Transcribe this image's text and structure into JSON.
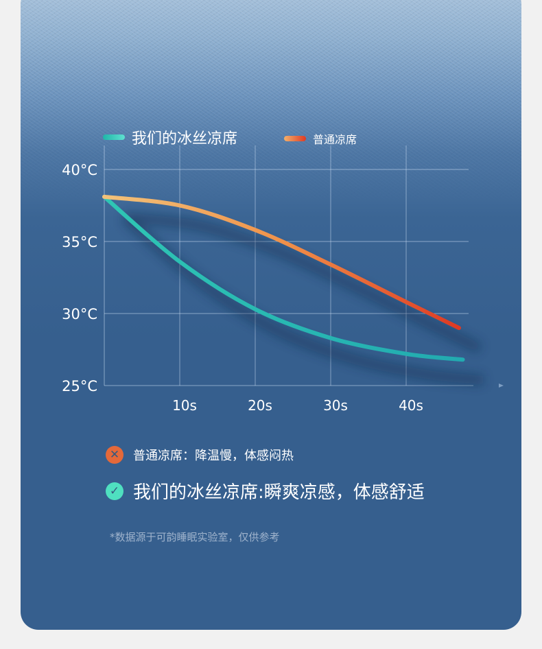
{
  "legend": {
    "ours": "我们的冰丝凉席",
    "regular": "普通凉席"
  },
  "notes": {
    "regular": {
      "icon": "x-circle-icon",
      "text": "普通凉席：降温慢，体感闷热"
    },
    "ours": {
      "icon": "check-circle-icon",
      "text": "我们的冰丝凉席:瞬爽凉感，体感舒适"
    }
  },
  "footnote": "*数据源于可韵睡眠实验室，仅供参考",
  "colors": {
    "ours": "#2bbfae",
    "regular_start": "#f2b46a",
    "regular_end": "#dd3a24",
    "background": "#365f8e",
    "x_icon": "#e4693a",
    "check_icon": "#4fe0c0"
  },
  "chart_data": {
    "type": "line",
    "x_ticks": [
      "10s",
      "20s",
      "30s",
      "40s"
    ],
    "y_ticks": [
      "25°C",
      "30°C",
      "35°C",
      "40°C"
    ],
    "xlim": [
      0,
      50
    ],
    "ylim": [
      25,
      40
    ],
    "grid": true,
    "legend": "top",
    "series": [
      {
        "name": "我们的冰丝凉席",
        "x": [
          0,
          10,
          20,
          30,
          40,
          47.5
        ],
        "y": [
          38.1,
          33.6,
          30.3,
          28.3,
          27.2,
          26.8
        ]
      },
      {
        "name": "普通凉席",
        "x": [
          0,
          10,
          20,
          30,
          40,
          47
        ],
        "y": [
          38.1,
          37.5,
          35.8,
          33.4,
          30.8,
          29.0
        ]
      }
    ]
  }
}
